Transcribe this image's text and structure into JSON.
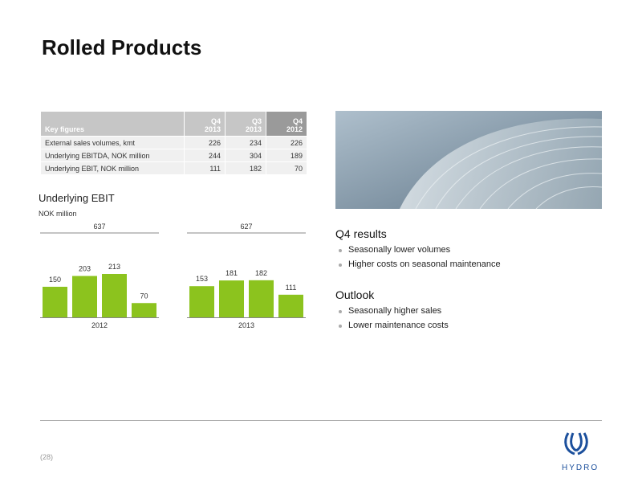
{
  "header": {
    "title": "Rolled Products"
  },
  "table": {
    "corner": "Key figures",
    "columns": [
      {
        "quarter": "Q4",
        "year": "2013"
      },
      {
        "quarter": "Q3",
        "year": "2013"
      },
      {
        "quarter": "Q4",
        "year": "2012"
      }
    ],
    "rows": [
      [
        "External sales volumes, kmt",
        "226",
        "234",
        "226"
      ],
      [
        "Underlying EBITDA, NOK million",
        "244",
        "304",
        "189"
      ],
      [
        "Underlying EBIT, NOK million",
        "111",
        "182",
        "70"
      ]
    ]
  },
  "chart_data": {
    "type": "bar",
    "title": "Underlying EBIT",
    "subtitle": "NOK million",
    "color": "#8cc31e",
    "groups": [
      {
        "name": "2012",
        "total": 637,
        "values": [
          150,
          203,
          213,
          70
        ]
      },
      {
        "name": "2013",
        "total": 627,
        "values": [
          153,
          181,
          182,
          111
        ]
      }
    ]
  },
  "panel": {
    "sections": [
      {
        "heading": "Q4 results",
        "bullets": [
          "Seasonally lower volumes",
          "Higher costs on seasonal maintenance"
        ]
      },
      {
        "heading": "Outlook",
        "bullets": [
          "Seasonally higher sales",
          "Lower maintenance costs"
        ]
      }
    ]
  },
  "footer": {
    "page": "(28)",
    "logo": "HYDRO"
  }
}
